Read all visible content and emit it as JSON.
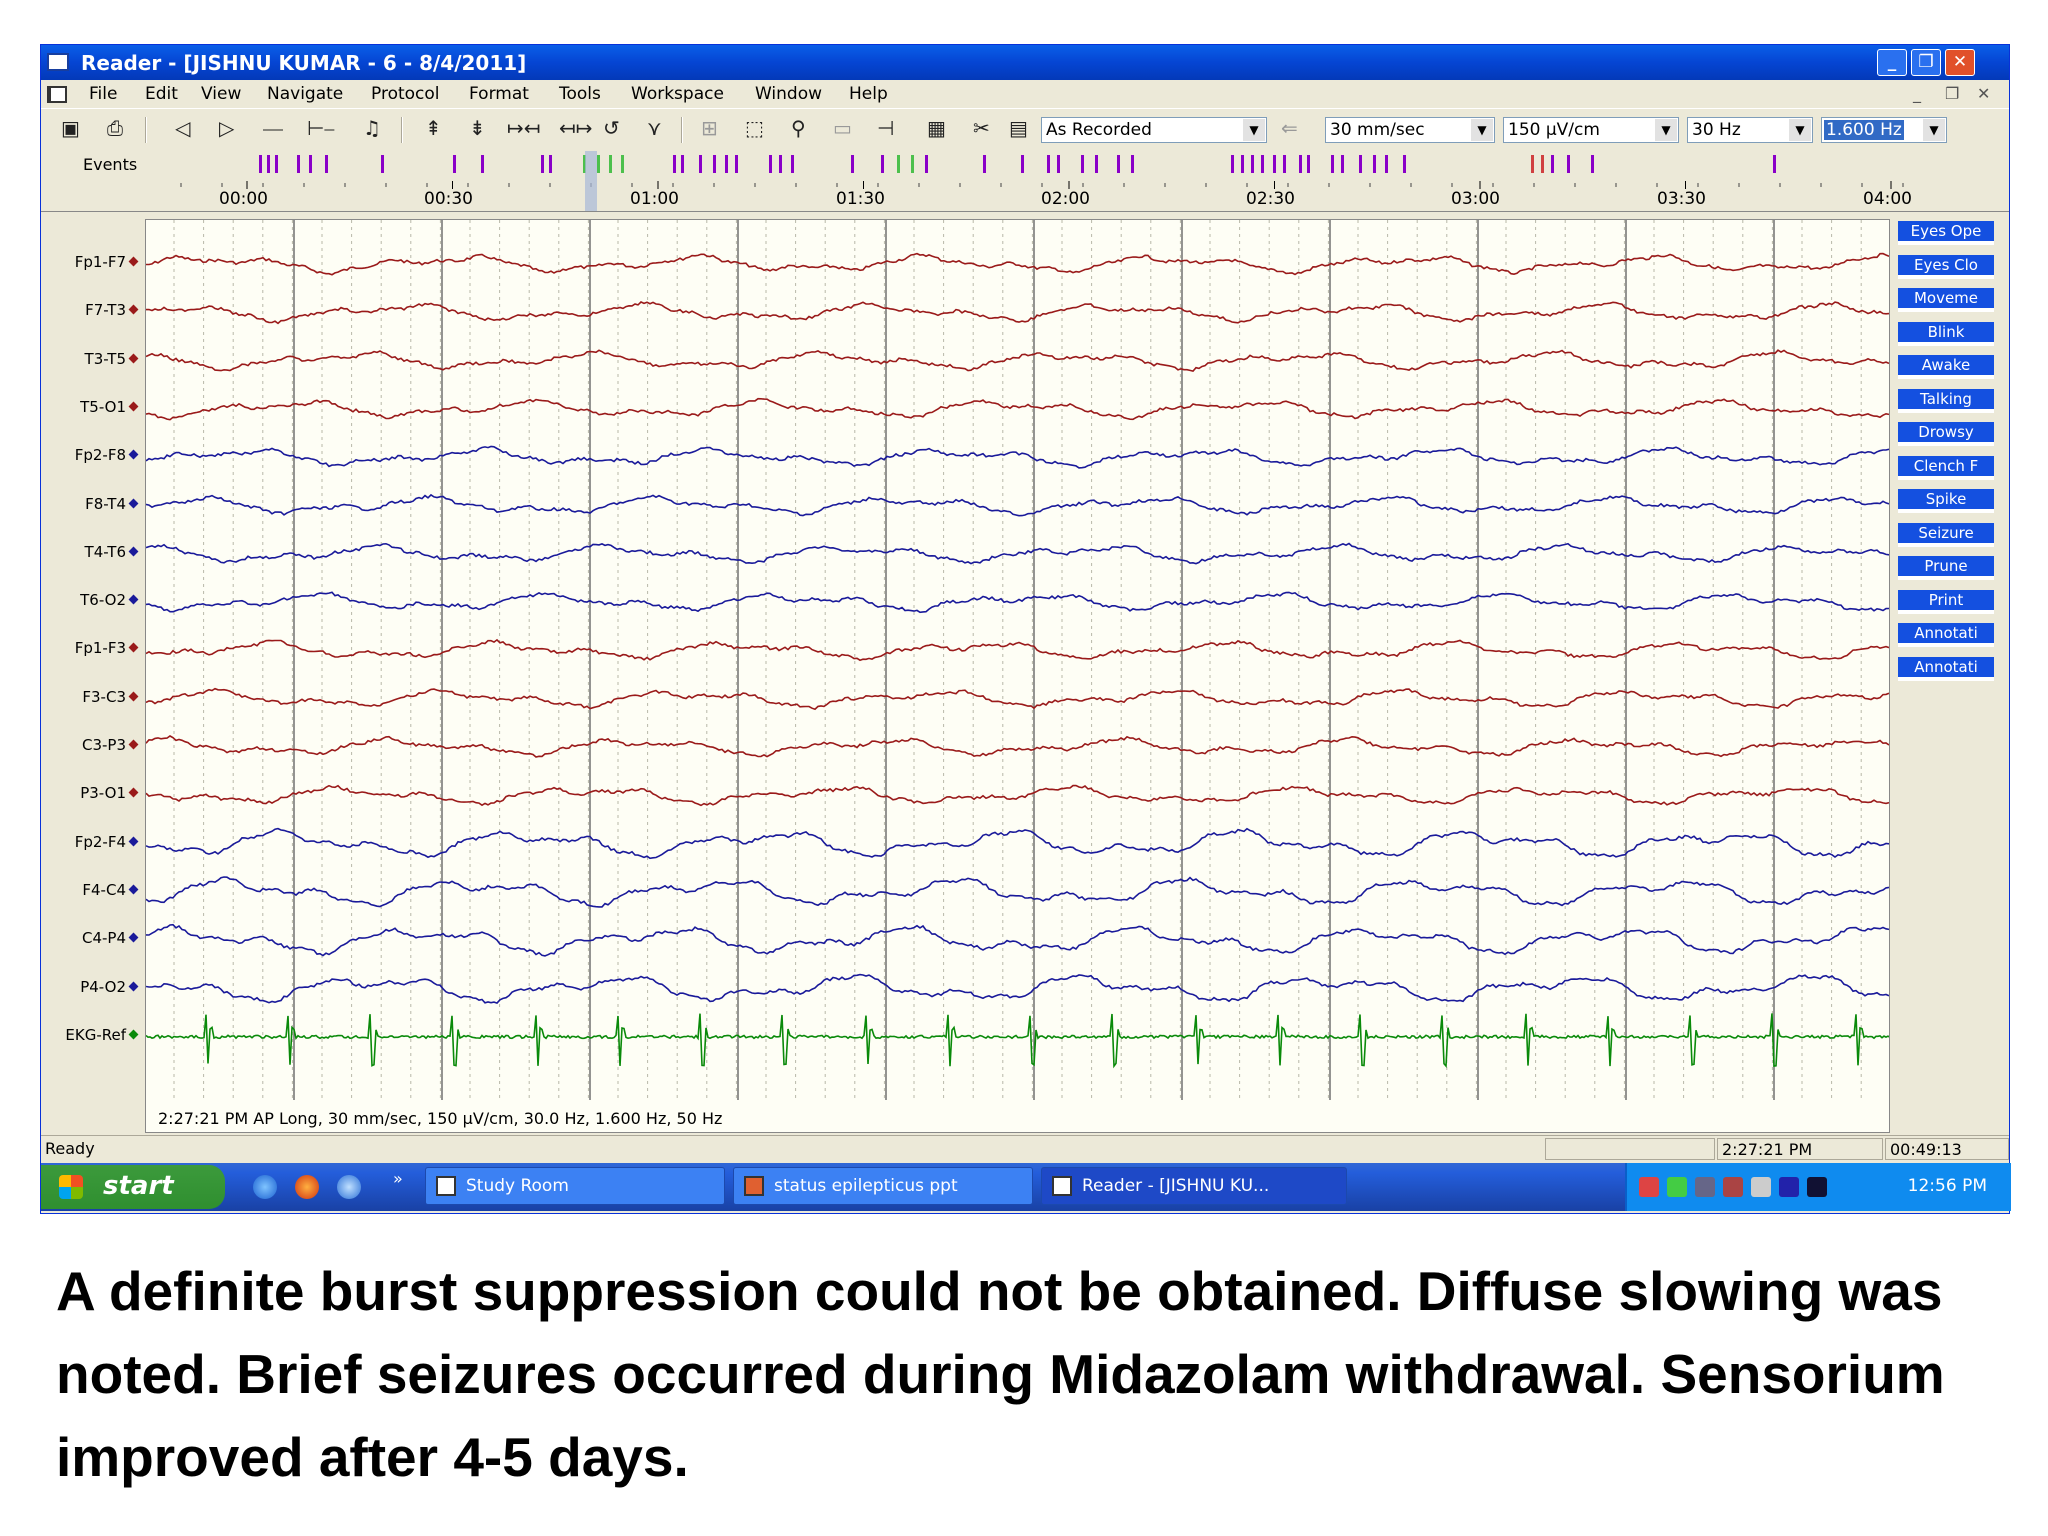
{
  "window": {
    "title": "Reader - [JISHNU KUMAR - 6 - 8/4/2011]",
    "caption_buttons": [
      "_",
      "❐",
      "✕"
    ]
  },
  "menubar": {
    "items": [
      "File",
      "Edit",
      "View",
      "Navigate",
      "Protocol",
      "Format",
      "Tools",
      "Workspace",
      "Window",
      "Help"
    ],
    "mdi_controls": [
      "_",
      "❐",
      "✕"
    ]
  },
  "toolbar": {
    "montage": "As Recorded",
    "speed": "30 mm/sec",
    "sensitivity": "150 µV/cm",
    "high_filter": "30 Hz",
    "low_filter": "1.600 Hz"
  },
  "events": {
    "label": "Events",
    "colors": {
      "purple": "#8a00c8",
      "green": "#4cc04c",
      "red": "#d04040"
    }
  },
  "timeline": {
    "labels": [
      "00:00",
      "00:30",
      "01:00",
      "01:30",
      "02:00",
      "02:30",
      "03:00",
      "03:30",
      "04:00"
    ]
  },
  "channels": [
    {
      "label": "Fp1-F7",
      "color": "#9a1a1a"
    },
    {
      "label": "F7-T3",
      "color": "#9a1a1a"
    },
    {
      "label": "T3-T5",
      "color": "#9a1a1a"
    },
    {
      "label": "T5-O1",
      "color": "#9a1a1a"
    },
    {
      "label": "Fp2-F8",
      "color": "#1a1a9a"
    },
    {
      "label": "F8-T4",
      "color": "#1a1a9a"
    },
    {
      "label": "T4-T6",
      "color": "#1a1a9a"
    },
    {
      "label": "T6-O2",
      "color": "#1a1a9a"
    },
    {
      "label": "Fp1-F3",
      "color": "#9a1a1a"
    },
    {
      "label": "F3-C3",
      "color": "#9a1a1a"
    },
    {
      "label": "C3-P3",
      "color": "#9a1a1a"
    },
    {
      "label": "P3-O1",
      "color": "#9a1a1a"
    },
    {
      "label": "Fp2-F4",
      "color": "#1a1a9a"
    },
    {
      "label": "F4-C4",
      "color": "#1a1a9a"
    },
    {
      "label": "C4-P4",
      "color": "#1a1a9a"
    },
    {
      "label": "P4-O2",
      "color": "#1a1a9a"
    },
    {
      "label": "EKG-Ref",
      "color": "#0a8a0a"
    }
  ],
  "plot": {
    "footer": "2:27:21 PM AP Long, 30 mm/sec, 150 µV/cm, 30.0 Hz, 1.600 Hz, 50 Hz"
  },
  "annotations": [
    "Eyes Ope",
    "Eyes Clo",
    "Moveme",
    "Blink",
    "Awake",
    "Talking",
    "Drowsy",
    "Clench F",
    "Spike",
    "Seizure",
    "Prune",
    "Print",
    "Annotati",
    "Annotati"
  ],
  "statusbar": {
    "status": "Ready",
    "clock_time": "2:27:21 PM",
    "elapsed": "00:49:13"
  },
  "taskbar": {
    "start": "start",
    "overflow": "»",
    "tasks": [
      "Study Room",
      "status epilepticus ppt",
      "Reader - [JISHNU KU..."
    ],
    "clock": "12:56 PM"
  },
  "caption": "A definite burst suppression could not be obtained. Diffuse slowing was noted. Brief seizures occurred during Midazolam withdrawal. Sensorium improved after 4-5 days."
}
